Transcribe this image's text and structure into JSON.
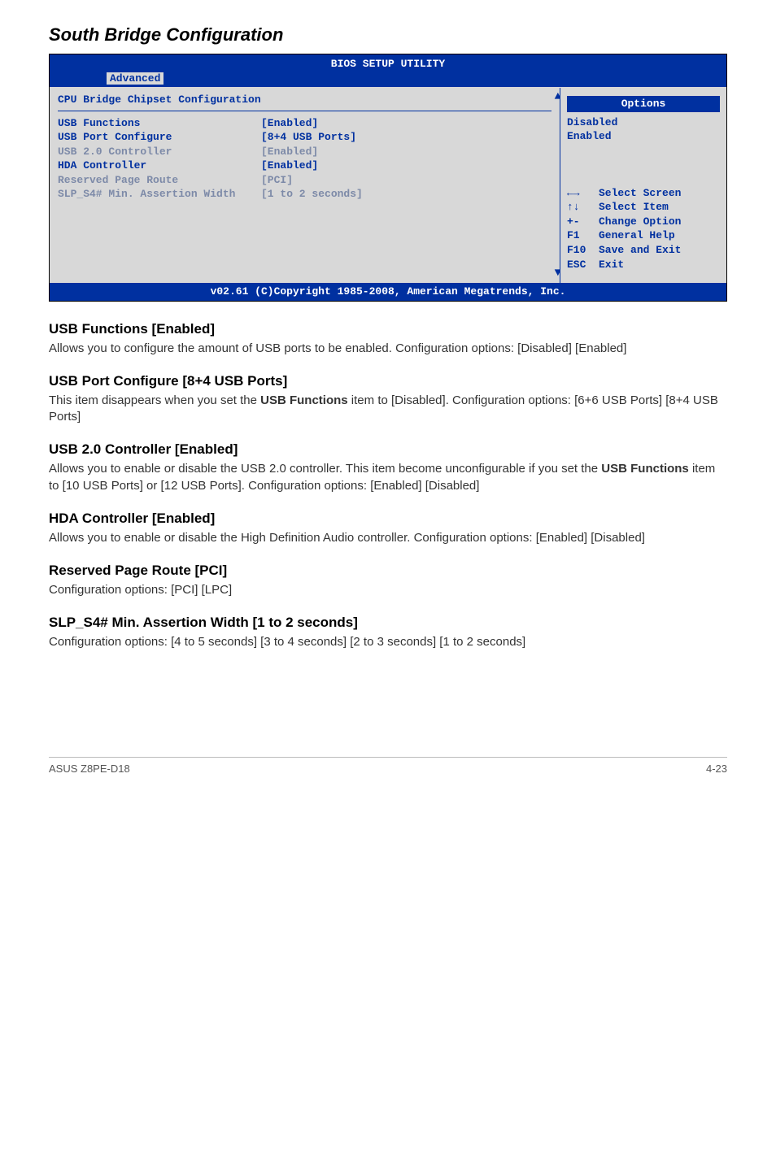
{
  "title": "South Bridge Configuration",
  "bios": {
    "titlebar": "BIOS SETUP UTILITY",
    "tab": "Advanced",
    "panel_title": "CPU Bridge Chipset Configuration",
    "rows": [
      {
        "key": "USB Functions",
        "val": "[Enabled]",
        "dim": false
      },
      {
        "key": "USB Port Configure",
        "val": "[8+4 USB Ports]",
        "dim": false
      },
      {
        "key": "USB 2.0 Controller",
        "val": "[Enabled]",
        "dim": true
      },
      {
        "key": "HDA Controller",
        "val": "[Enabled]",
        "dim": false
      },
      {
        "key": "Reserved Page Route",
        "val": "[PCI]",
        "dim": true
      },
      {
        "key": "",
        "val": "",
        "dim": false
      },
      {
        "key": "SLP_S4# Min. Assertion Width",
        "val": "[1 to 2 seconds]",
        "dim": true
      }
    ],
    "options_header": "Options",
    "options": [
      "Disabled",
      "Enabled"
    ],
    "help": [
      "←→   Select Screen",
      "↑↓   Select Item",
      "+-   Change Option",
      "F1   General Help",
      "F10  Save and Exit",
      "ESC  Exit"
    ],
    "footer": "v02.61 (C)Copyright 1985-2008, American Megatrends, Inc."
  },
  "sections": [
    {
      "heading": "USB Functions [Enabled]",
      "body": "Allows you to configure the amount of USB ports to be enabled. Configuration options: [Disabled] [Enabled]"
    },
    {
      "heading": "USB Port Configure [8+4 USB Ports]",
      "body_html": "This item disappears when you set the <b>USB Functions</b> item to [Disabled]. Configuration options: [6+6 USB Ports] [8+4 USB Ports]"
    },
    {
      "heading": "USB 2.0 Controller [Enabled]",
      "body_html": "Allows you to enable or disable the USB 2.0 controller. This item become unconfigurable if you set the <b>USB Functions</b> item to [10 USB Ports] or [12 USB Ports]. Configuration options: [Enabled] [Disabled]"
    },
    {
      "heading": "HDA Controller [Enabled]",
      "body": "Allows you to enable or disable the High Definition Audio controller. Configuration options: [Enabled] [Disabled]"
    },
    {
      "heading": "Reserved Page Route [PCI]",
      "body": "Configuration options: [PCI] [LPC]"
    },
    {
      "heading": "SLP_S4# Min. Assertion Width [1 to 2 seconds]",
      "body": "Configuration options: [4 to 5 seconds] [3 to 4 seconds] [2 to 3 seconds] [1 to 2 seconds]"
    }
  ],
  "footer": {
    "left": "ASUS Z8PE-D18",
    "right": "4-23"
  }
}
